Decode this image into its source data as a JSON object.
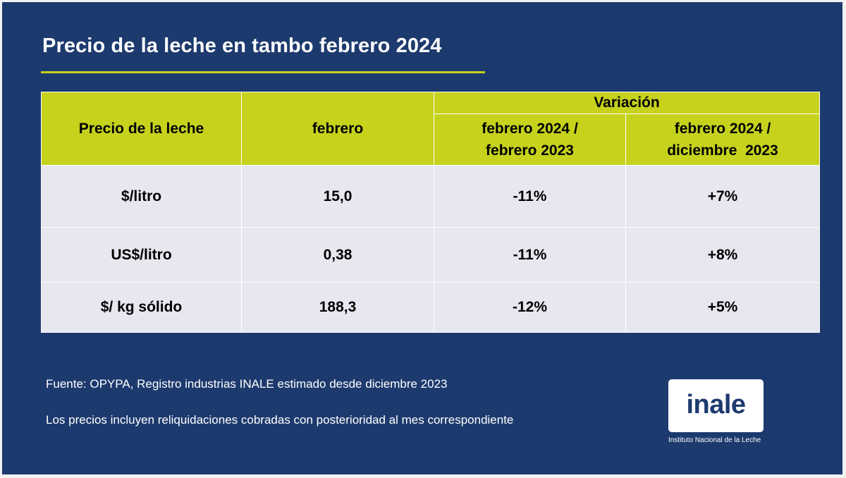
{
  "title": "Precio de la leche en tambo febrero 2024",
  "colors": {
    "background": "#1d3a6e",
    "accent": "#c6d21c",
    "cell": "#e6e7ef"
  },
  "table": {
    "headers": {
      "col1": "Precio de la leche",
      "col2": "febrero",
      "group": "Variación",
      "sub1_line1": "febrero 2024 /",
      "sub1_line2": "febrero 2023",
      "sub2_line1": "febrero 2024 /",
      "sub2_line2": "diciembre  2023"
    },
    "rows": [
      {
        "label": "$/litro",
        "febrero": "15,0",
        "var_anual": "-11%",
        "var_dic": "+7%"
      },
      {
        "label": "US$/litro",
        "febrero": "0,38",
        "var_anual": "-11%",
        "var_dic": "+8%"
      },
      {
        "label": "$/ kg sólido",
        "febrero": "188,3",
        "var_anual": "-12%",
        "var_dic": "+5%"
      }
    ]
  },
  "footer": {
    "source": "Fuente: OPYPA, Registro industrias INALE estimado desde diciembre 2023",
    "note": "Los precios incluyen reliquidaciones cobradas con posterioridad al mes correspondiente"
  },
  "logo": {
    "text": "inale",
    "caption": "Instituto Nacional de la Leche"
  }
}
